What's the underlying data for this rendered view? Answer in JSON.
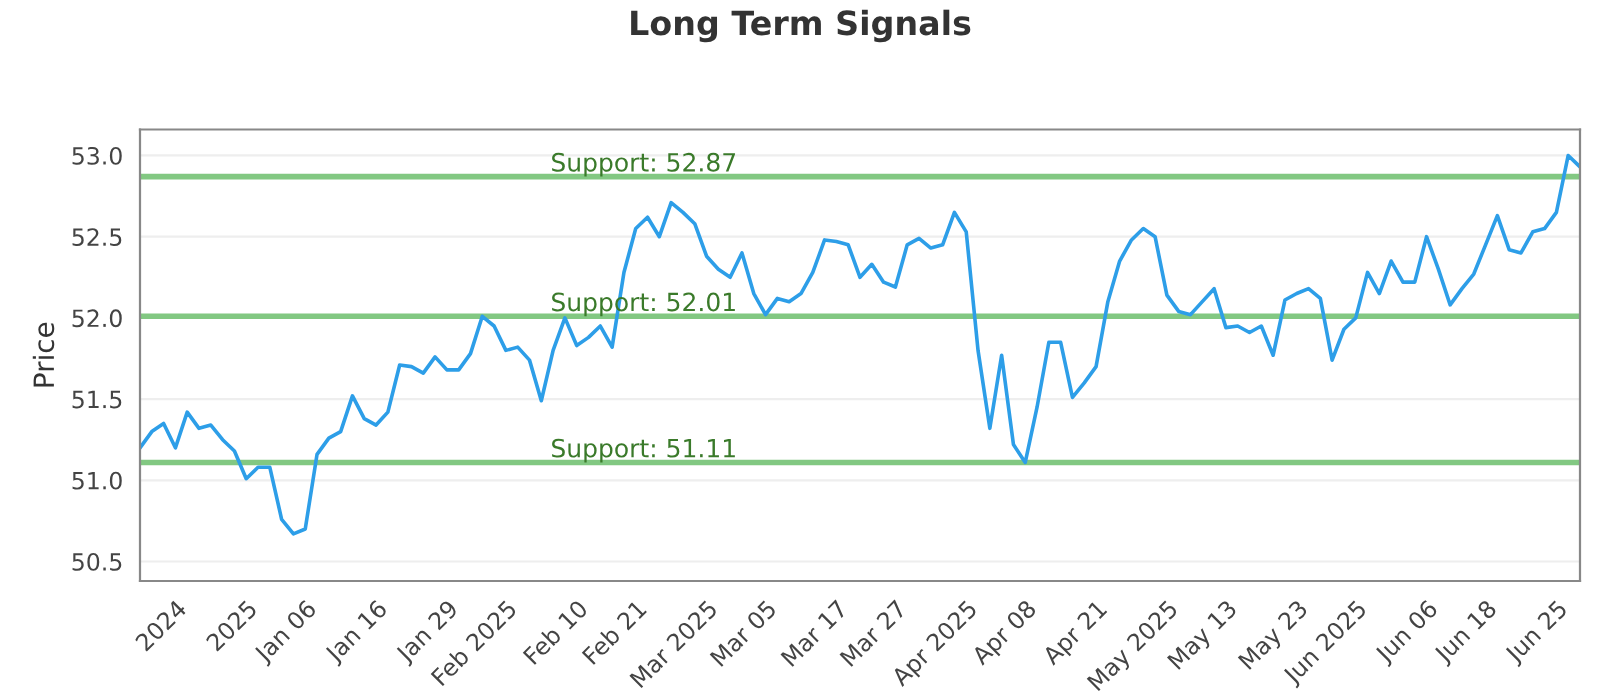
{
  "chart_data": {
    "type": "line",
    "title": "Long Term Signals",
    "ylabel": "Price",
    "categories": [
      null,
      null,
      null,
      "2024",
      null,
      null,
      null,
      null,
      null,
      "2025",
      null,
      null,
      null,
      null,
      "Jan 06",
      null,
      null,
      null,
      null,
      null,
      "Jan 16",
      null,
      null,
      null,
      null,
      null,
      "Jan 29",
      null,
      null,
      null,
      null,
      "Feb 2025",
      null,
      null,
      null,
      null,
      null,
      "Feb 10",
      null,
      null,
      null,
      null,
      "Feb 21",
      null,
      null,
      null,
      null,
      null,
      "Mar 2025",
      null,
      null,
      null,
      null,
      "Mar 05",
      null,
      null,
      null,
      null,
      null,
      "Mar 17",
      null,
      null,
      null,
      null,
      "Mar 27",
      null,
      null,
      null,
      null,
      null,
      "Apr 2025",
      null,
      null,
      null,
      null,
      "Apr 08",
      null,
      null,
      null,
      null,
      null,
      "Apr 21",
      null,
      null,
      null,
      null,
      null,
      "May 2025",
      null,
      null,
      null,
      null,
      "May 13",
      null,
      null,
      null,
      null,
      null,
      "May 23",
      null,
      null,
      null,
      null,
      "Jun 2025",
      null,
      null,
      null,
      null,
      null,
      "Jun 06",
      null,
      null,
      null,
      null,
      "Jun 18",
      null,
      null,
      null,
      null,
      null,
      "Jun 25",
      null,
      null
    ],
    "series": [
      {
        "color": "#2d9ee8",
        "values": [
          51.2,
          51.3,
          51.35,
          51.2,
          51.42,
          51.32,
          51.34,
          51.25,
          51.18,
          51.01,
          51.08,
          51.08,
          50.76,
          50.67,
          50.7,
          51.16,
          51.26,
          51.3,
          51.52,
          51.38,
          51.34,
          51.42,
          51.71,
          51.7,
          51.66,
          51.76,
          51.68,
          51.68,
          51.78,
          52.01,
          51.95,
          51.8,
          51.82,
          51.74,
          51.49,
          51.8,
          52.0,
          51.83,
          51.88,
          51.95,
          51.82,
          52.28,
          52.55,
          52.62,
          52.5,
          52.71,
          52.65,
          52.58,
          52.38,
          52.3,
          52.25,
          52.4,
          52.15,
          52.02,
          52.12,
          52.1,
          52.15,
          52.28,
          52.48,
          52.47,
          52.45,
          52.25,
          52.33,
          52.22,
          52.19,
          52.45,
          52.49,
          52.43,
          52.45,
          52.65,
          52.53,
          51.8,
          51.32,
          51.77,
          51.22,
          51.11,
          51.45,
          51.85,
          51.85,
          51.51,
          51.6,
          51.7,
          52.1,
          52.35,
          52.48,
          52.55,
          52.5,
          52.14,
          52.04,
          52.02,
          52.1,
          52.18,
          51.94,
          51.95,
          51.91,
          51.95,
          51.77,
          52.11,
          52.15,
          52.18,
          52.12,
          51.74,
          51.93,
          52.0,
          52.28,
          52.15,
          52.35,
          52.22,
          52.22,
          52.5,
          52.3,
          52.08,
          52.18,
          52.27,
          52.45,
          52.63,
          52.42,
          52.4,
          52.53,
          52.55,
          52.65,
          53.0,
          52.93
        ]
      }
    ],
    "ylim": [
      50.38,
      53.16
    ],
    "yticks": [
      "50.5",
      "51.0",
      "51.5",
      "52.0",
      "52.5",
      "53.0"
    ],
    "ref_lines": [
      {
        "axis": "y",
        "value": 52.87,
        "label": "Support: 52.87",
        "color": "#82c882"
      },
      {
        "axis": "y",
        "value": 52.01,
        "label": "Support: 52.01",
        "color": "#82c882"
      },
      {
        "axis": "y",
        "value": 51.11,
        "label": "Support: 51.11",
        "color": "#82c882"
      }
    ],
    "grid": "y",
    "legend": false,
    "marker": "none",
    "line_style": "solid"
  }
}
